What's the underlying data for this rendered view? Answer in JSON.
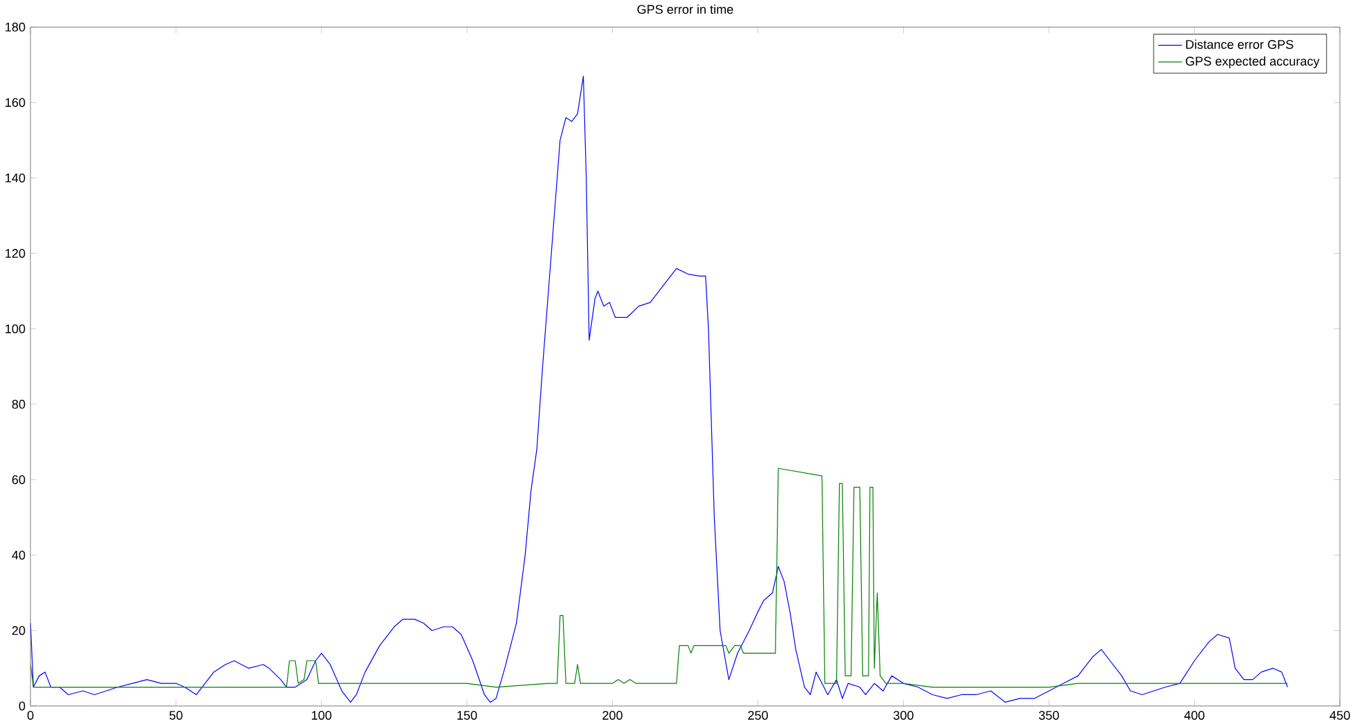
{
  "chart_data": {
    "type": "line",
    "title": "GPS error in time",
    "xlim": [
      0,
      450
    ],
    "ylim": [
      0,
      180
    ],
    "xticks": [
      0,
      50,
      100,
      150,
      200,
      250,
      300,
      350,
      400,
      450
    ],
    "yticks": [
      0,
      20,
      40,
      60,
      80,
      100,
      120,
      140,
      160,
      180
    ],
    "grid": false,
    "legend": "top right",
    "marker": "none",
    "line_style": "solid",
    "series": [
      {
        "name": "Distance error GPS",
        "color": "#0000ff",
        "x": [
          0,
          1,
          3,
          5,
          7,
          10,
          13,
          18,
          22,
          26,
          30,
          35,
          40,
          45,
          50,
          53,
          55,
          57,
          60,
          63,
          67,
          70,
          75,
          80,
          82,
          86,
          88,
          91,
          95,
          98,
          100,
          103,
          107,
          110,
          112,
          115,
          120,
          125,
          128,
          132,
          135,
          138,
          142,
          145,
          148,
          152,
          156,
          158,
          160,
          163,
          167,
          170,
          172,
          174,
          176,
          178,
          180,
          182,
          184,
          186,
          188,
          190,
          191,
          192,
          194,
          195,
          197,
          199,
          201,
          205,
          209,
          213,
          218,
          222,
          226,
          230,
          232,
          233,
          235,
          237,
          240,
          243,
          247,
          250,
          252,
          255,
          257,
          259,
          261,
          263,
          266,
          268,
          270,
          272,
          274,
          277,
          279,
          281,
          285,
          287,
          290,
          293,
          296,
          300,
          305,
          310,
          315,
          320,
          325,
          330,
          335,
          340,
          345,
          350,
          355,
          360,
          365,
          368,
          371,
          375,
          378,
          382,
          386,
          390,
          395,
          400,
          405,
          408,
          412,
          414,
          417,
          420,
          423,
          427,
          430,
          432
        ],
        "values": [
          22,
          5,
          8,
          9,
          5,
          5,
          3,
          4,
          3,
          4,
          5,
          6,
          7,
          6,
          6,
          5,
          4,
          3,
          6,
          9,
          11,
          12,
          10,
          11,
          10,
          7,
          5,
          5,
          7,
          12,
          14,
          11,
          4,
          1,
          3,
          9,
          16,
          21,
          23,
          23,
          22,
          20,
          21,
          21,
          19,
          12,
          3,
          1,
          2,
          10,
          22,
          40,
          57,
          68,
          90,
          110,
          130,
          150,
          156,
          155,
          157,
          167,
          140,
          97,
          108,
          110,
          106,
          107,
          103,
          103,
          106,
          107,
          112,
          116,
          114.5,
          114,
          114,
          100,
          50,
          20,
          7,
          14,
          20,
          25,
          28,
          30,
          37,
          33,
          25,
          15,
          5,
          3,
          9,
          6,
          3,
          7,
          2,
          6,
          5,
          3,
          6,
          4,
          8,
          6,
          5,
          3,
          2,
          3,
          3,
          4,
          1,
          2,
          2,
          4,
          6,
          8,
          13,
          15,
          12,
          8,
          4,
          3,
          4,
          5,
          6,
          12,
          17,
          19,
          18,
          10,
          7,
          7,
          9,
          10,
          9,
          5
        ]
      },
      {
        "name": "GPS expected accuracy",
        "color": "#008000",
        "x": [
          0,
          1,
          10,
          50,
          88,
          89,
          91,
          92,
          94,
          95,
          98,
          99,
          150,
          160,
          178,
          181,
          182,
          183,
          184,
          187,
          188,
          189,
          200,
          202,
          204,
          206,
          208,
          222,
          223,
          226,
          227,
          228,
          239,
          240,
          242,
          244,
          245,
          256,
          257,
          272,
          273,
          277,
          278,
          279,
          280,
          282,
          283,
          285,
          286,
          288,
          288.5,
          289.5,
          290,
          291,
          292,
          294,
          300,
          310,
          350,
          360,
          430,
          432
        ],
        "values": [
          11,
          5,
          5,
          5,
          5,
          12,
          12,
          6,
          7,
          12,
          12,
          6,
          6,
          5,
          6,
          6,
          24,
          24,
          6,
          6,
          11,
          6,
          6,
          7,
          6,
          7,
          6,
          6,
          16,
          16,
          14,
          16,
          16,
          14,
          16,
          16,
          14,
          14,
          63,
          61,
          6,
          6,
          59,
          59,
          8,
          8,
          58,
          58,
          8,
          8,
          58,
          58,
          10,
          30,
          8,
          6,
          6,
          5,
          5,
          6,
          6,
          6
        ]
      }
    ]
  }
}
